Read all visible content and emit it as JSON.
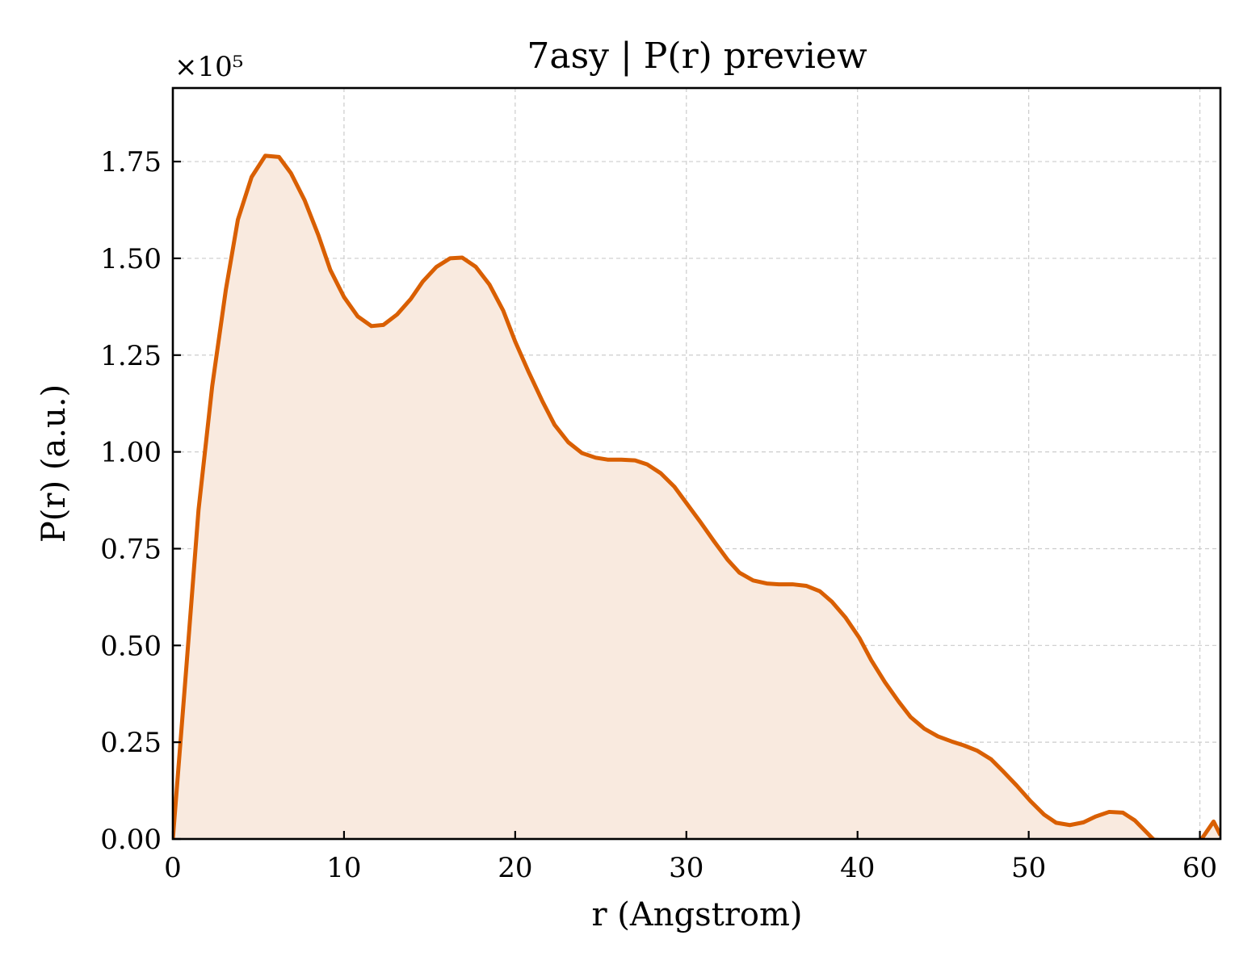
{
  "chart_data": {
    "type": "area",
    "title": "7asy | P(r) preview",
    "xlabel": "r (Angstrom)",
    "ylabel": "P(r) (a.u.)",
    "y_multiplier_label": "×10⁵",
    "xlim": [
      0,
      61.2
    ],
    "ylim": [
      0,
      1.94
    ],
    "xticks": [
      0,
      10,
      20,
      30,
      40,
      50,
      60
    ],
    "yticks": [
      0.0,
      0.25,
      0.5,
      0.75,
      1.0,
      1.25,
      1.5,
      1.75
    ],
    "ytick_labels": [
      "0.00",
      "0.25",
      "0.50",
      "0.75",
      "1.00",
      "1.25",
      "1.50",
      "1.75"
    ],
    "grid": true,
    "line_color": "#d95f02",
    "fill_color": "#f9eadf",
    "series": [
      {
        "x": [
          0,
          0.8,
          1.5,
          2.3,
          3.1,
          3.8,
          4.6,
          5.4,
          6.2,
          6.9,
          7.7,
          8.5,
          9.2,
          10.0,
          10.8,
          11.6,
          12.3,
          13.1,
          13.9,
          14.6,
          15.4,
          16.2,
          16.9,
          17.7,
          18.5,
          19.3,
          20.0,
          20.8,
          21.6,
          22.3,
          23.1,
          23.9,
          24.7,
          25.4,
          26.2,
          27.0,
          27.7,
          28.5,
          29.3,
          30.0,
          30.8,
          31.6,
          32.4,
          33.1,
          33.9,
          34.7,
          35.4,
          36.2,
          37.0,
          37.8,
          38.5,
          39.3,
          40.1,
          40.8,
          41.6,
          42.4,
          43.1,
          43.9,
          44.7,
          45.5,
          46.2,
          47.0,
          47.8,
          48.5,
          49.3,
          50.1,
          50.9,
          51.6,
          52.4,
          53.2,
          53.9,
          54.7,
          55.5,
          56.2,
          57.0,
          57.8,
          58.6,
          59.3,
          60.1,
          60.8,
          61.2
        ],
        "y": [
          0.0,
          0.45,
          0.85,
          1.17,
          1.42,
          1.6,
          1.71,
          1.765,
          1.762,
          1.72,
          1.65,
          1.56,
          1.47,
          1.4,
          1.35,
          1.325,
          1.328,
          1.355,
          1.395,
          1.44,
          1.478,
          1.5,
          1.502,
          1.478,
          1.432,
          1.365,
          1.285,
          1.205,
          1.13,
          1.07,
          1.025,
          0.997,
          0.985,
          0.98,
          0.98,
          0.978,
          0.968,
          0.945,
          0.91,
          0.868,
          0.82,
          0.77,
          0.722,
          0.688,
          0.668,
          0.66,
          0.658,
          0.658,
          0.654,
          0.64,
          0.613,
          0.572,
          0.52,
          0.462,
          0.405,
          0.355,
          0.315,
          0.285,
          0.265,
          0.252,
          0.242,
          0.228,
          0.206,
          0.175,
          0.138,
          0.098,
          0.063,
          0.042,
          0.036,
          0.043,
          0.058,
          0.07,
          0.068,
          0.048,
          0.012,
          -0.025,
          -0.045,
          -0.035,
          0.0,
          0.045,
          0.01
        ]
      }
    ]
  }
}
